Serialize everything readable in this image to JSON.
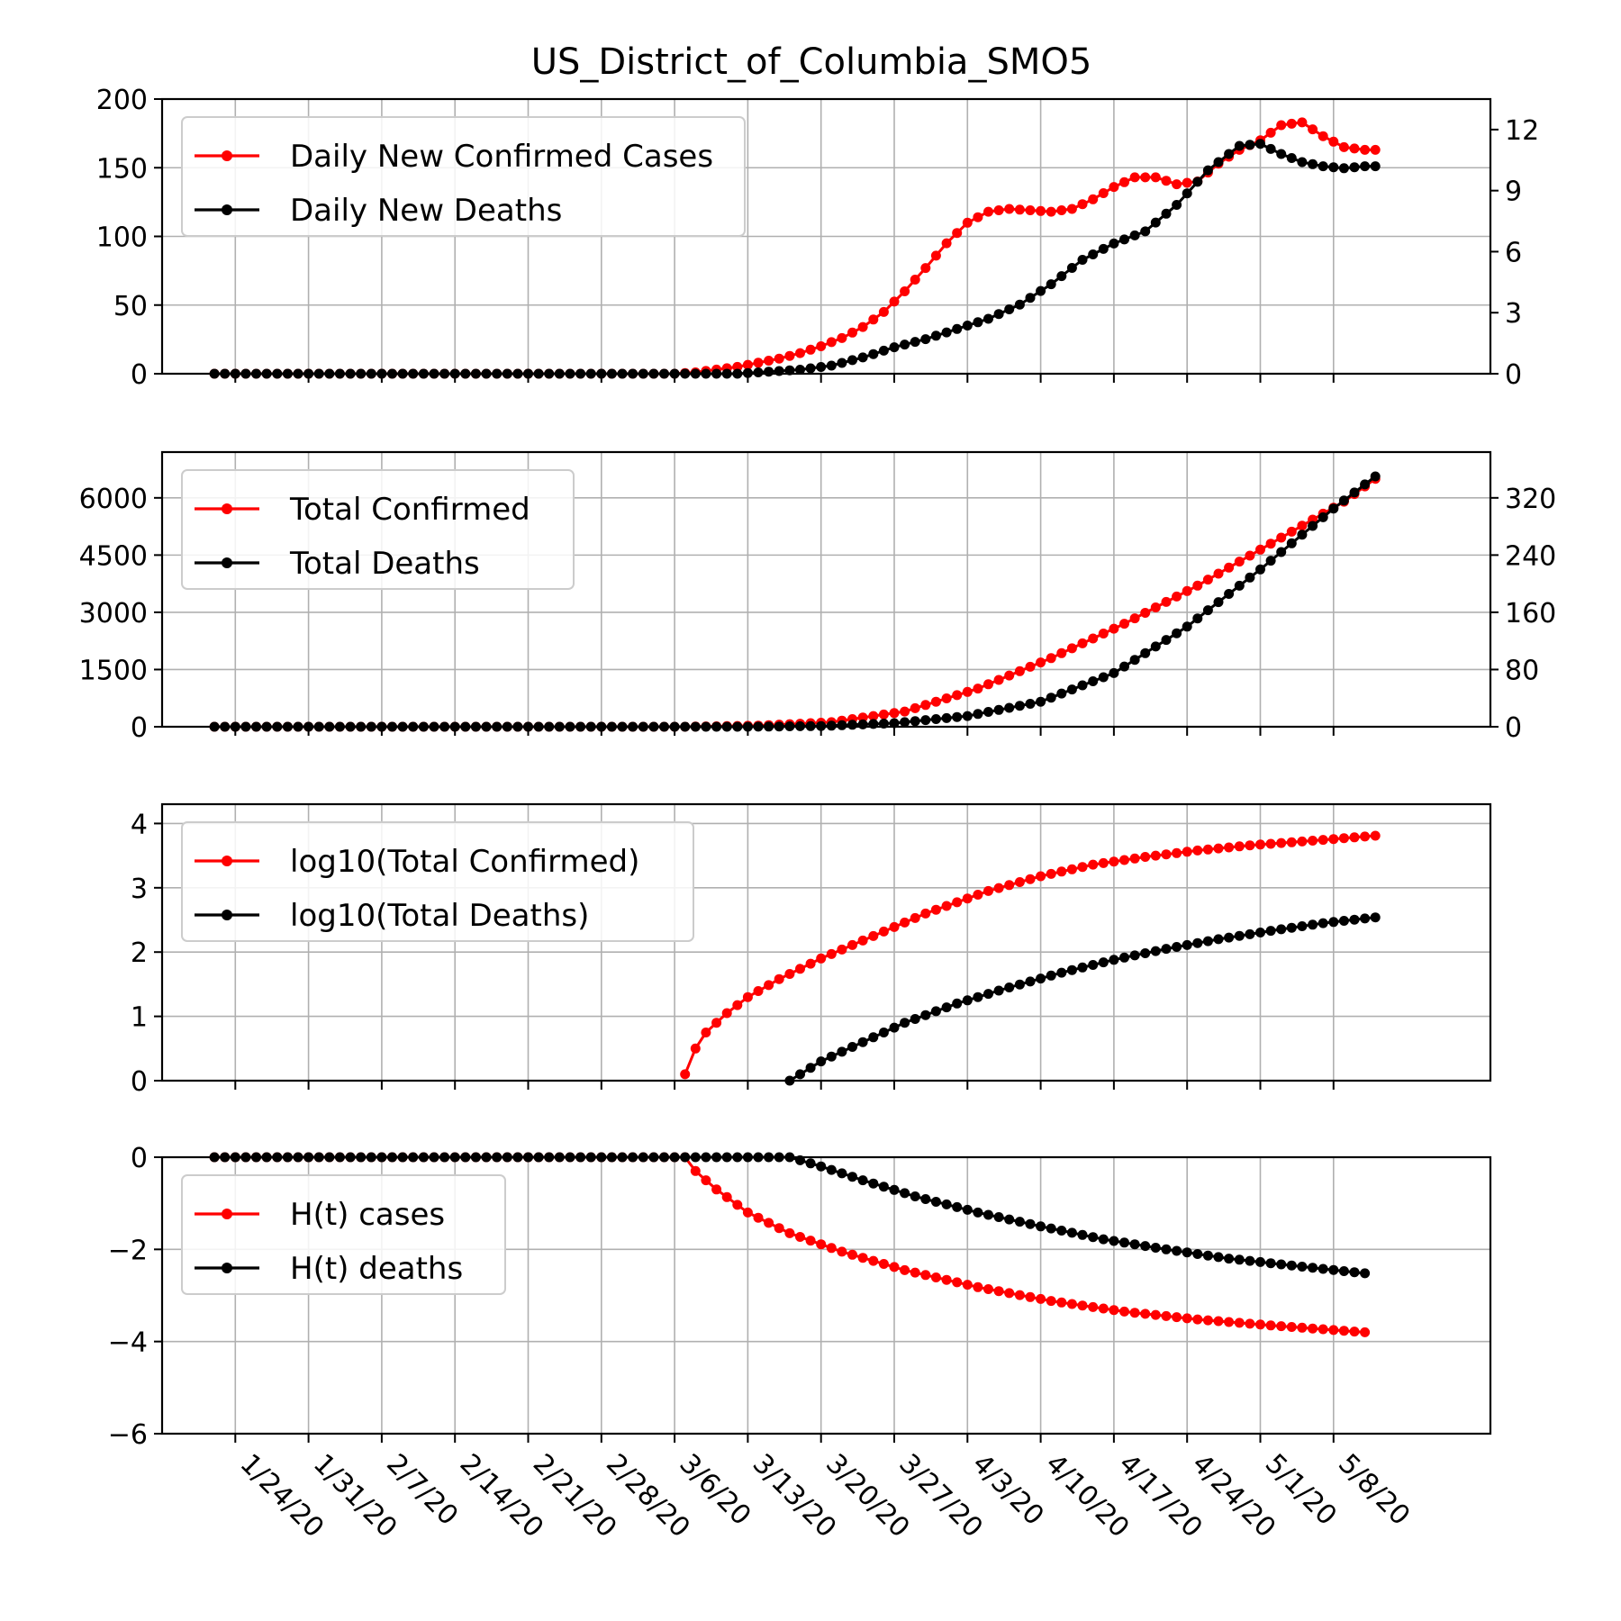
{
  "figure": {
    "title": "US_District_of_Columbia_SMO5",
    "x_tick_labels": [
      "1/24/20",
      "1/31/20",
      "2/7/20",
      "2/14/20",
      "2/21/20",
      "2/28/20",
      "3/6/20",
      "3/13/20",
      "3/20/20",
      "3/27/20",
      "4/3/20",
      "4/10/20",
      "4/17/20",
      "4/24/20",
      "5/1/20",
      "5/8/20"
    ]
  },
  "chart_data": [
    {
      "type": "line",
      "x_start": "2020-01-22",
      "x_end": "2020-05-12",
      "title": "US_District_of_Columbia_SMO5",
      "ylim_left": [
        0,
        200
      ],
      "ylim_right": [
        0,
        13.5
      ],
      "yticks_left": [
        0,
        50,
        100,
        150,
        200
      ],
      "yticks_right": [
        0,
        3,
        6,
        9,
        12
      ],
      "grid": true,
      "legend_position": "top-left",
      "series": [
        {
          "name": "Daily New Confirmed Cases",
          "color": "#ff0000",
          "axis": "left",
          "points": [
            [
              "2020-01-22",
              0
            ],
            [
              "2020-03-06",
              0
            ],
            [
              "2020-03-08",
              1
            ],
            [
              "2020-03-10",
              3
            ],
            [
              "2020-03-12",
              5
            ],
            [
              "2020-03-14",
              8
            ],
            [
              "2020-03-16",
              11
            ],
            [
              "2020-03-18",
              15
            ],
            [
              "2020-03-20",
              20
            ],
            [
              "2020-03-22",
              26
            ],
            [
              "2020-03-24",
              34
            ],
            [
              "2020-03-26",
              45
            ],
            [
              "2020-03-28",
              60
            ],
            [
              "2020-03-30",
              77
            ],
            [
              "2020-04-01",
              95
            ],
            [
              "2020-04-03",
              110
            ],
            [
              "2020-04-05",
              118
            ],
            [
              "2020-04-07",
              120
            ],
            [
              "2020-04-09",
              119
            ],
            [
              "2020-04-11",
              118
            ],
            [
              "2020-04-13",
              120
            ],
            [
              "2020-04-15",
              127
            ],
            [
              "2020-04-17",
              136
            ],
            [
              "2020-04-19",
              143
            ],
            [
              "2020-04-21",
              143
            ],
            [
              "2020-04-23",
              138
            ],
            [
              "2020-04-25",
              140
            ],
            [
              "2020-04-27",
              153
            ],
            [
              "2020-04-29",
              163
            ],
            [
              "2020-05-01",
              170
            ],
            [
              "2020-05-03",
              181
            ],
            [
              "2020-05-05",
              183
            ],
            [
              "2020-05-07",
              173
            ],
            [
              "2020-05-09",
              165
            ],
            [
              "2020-05-11",
              163
            ],
            [
              "2020-05-12",
              163
            ]
          ]
        },
        {
          "name": "Daily New Deaths",
          "color": "#000000",
          "axis": "right",
          "points": [
            [
              "2020-01-22",
              0
            ],
            [
              "2020-03-12",
              0
            ],
            [
              "2020-03-15",
              0.1
            ],
            [
              "2020-03-18",
              0.2
            ],
            [
              "2020-03-21",
              0.4
            ],
            [
              "2020-03-24",
              0.8
            ],
            [
              "2020-03-27",
              1.3
            ],
            [
              "2020-03-30",
              1.7
            ],
            [
              "2020-04-02",
              2.2
            ],
            [
              "2020-04-05",
              2.7
            ],
            [
              "2020-04-08",
              3.4
            ],
            [
              "2020-04-11",
              4.4
            ],
            [
              "2020-04-14",
              5.6
            ],
            [
              "2020-04-17",
              6.4
            ],
            [
              "2020-04-20",
              7.0
            ],
            [
              "2020-04-23",
              8.3
            ],
            [
              "2020-04-26",
              10.0
            ],
            [
              "2020-04-29",
              11.2
            ],
            [
              "2020-05-01",
              11.3
            ],
            [
              "2020-05-03",
              10.8
            ],
            [
              "2020-05-05",
              10.4
            ],
            [
              "2020-05-07",
              10.2
            ],
            [
              "2020-05-09",
              10.1
            ],
            [
              "2020-05-11",
              10.2
            ],
            [
              "2020-05-12",
              10.2
            ]
          ]
        }
      ]
    },
    {
      "type": "line",
      "x_start": "2020-01-22",
      "x_end": "2020-05-12",
      "ylim_left": [
        0,
        7200
      ],
      "ylim_right": [
        0,
        384
      ],
      "yticks_left": [
        0,
        1500,
        3000,
        4500,
        6000
      ],
      "yticks_right": [
        0,
        80,
        160,
        240,
        320
      ],
      "grid": true,
      "legend_position": "top-left",
      "series": [
        {
          "name": "Total Confirmed",
          "color": "#ff0000",
          "axis": "left",
          "points": [
            [
              "2020-01-22",
              0
            ],
            [
              "2020-03-07",
              0
            ],
            [
              "2020-03-14",
              30
            ],
            [
              "2020-03-21",
              120
            ],
            [
              "2020-03-28",
              400
            ],
            [
              "2020-04-04",
              1000
            ],
            [
              "2020-04-11",
              1800
            ],
            [
              "2020-04-18",
              2700
            ],
            [
              "2020-04-25",
              3700
            ],
            [
              "2020-05-02",
              4800
            ],
            [
              "2020-05-09",
              5900
            ],
            [
              "2020-05-12",
              6500
            ]
          ]
        },
        {
          "name": "Total Deaths",
          "color": "#000000",
          "axis": "right",
          "points": [
            [
              "2020-01-22",
              0
            ],
            [
              "2020-03-13",
              0
            ],
            [
              "2020-03-20",
              1
            ],
            [
              "2020-03-27",
              5
            ],
            [
              "2020-04-03",
              15
            ],
            [
              "2020-04-10",
              35
            ],
            [
              "2020-04-17",
              75
            ],
            [
              "2020-04-24",
              140
            ],
            [
              "2020-05-01",
              220
            ],
            [
              "2020-05-08",
              305
            ],
            [
              "2020-05-12",
              350
            ]
          ]
        }
      ]
    },
    {
      "type": "line",
      "x_start": "2020-01-22",
      "x_end": "2020-05-12",
      "ylim": [
        0,
        4.3
      ],
      "yticks": [
        0,
        1,
        2,
        3,
        4
      ],
      "grid": true,
      "legend_position": "top-left",
      "series": [
        {
          "name": "log10(Total Confirmed)",
          "color": "#ff0000",
          "points": [
            [
              "2020-03-07",
              0.1
            ],
            [
              "2020-03-08",
              0.5
            ],
            [
              "2020-03-09",
              0.75
            ],
            [
              "2020-03-11",
              1.05
            ],
            [
              "2020-03-13",
              1.3
            ],
            [
              "2020-03-16",
              1.58
            ],
            [
              "2020-03-20",
              1.9
            ],
            [
              "2020-03-25",
              2.25
            ],
            [
              "2020-03-30",
              2.6
            ],
            [
              "2020-04-05",
              2.95
            ],
            [
              "2020-04-10",
              3.18
            ],
            [
              "2020-04-15",
              3.36
            ],
            [
              "2020-04-20",
              3.48
            ],
            [
              "2020-04-25",
              3.58
            ],
            [
              "2020-04-30",
              3.66
            ],
            [
              "2020-05-05",
              3.72
            ],
            [
              "2020-05-12",
              3.81
            ]
          ]
        },
        {
          "name": "log10(Total Deaths)",
          "color": "#000000",
          "points": [
            [
              "2020-03-17",
              0
            ],
            [
              "2020-03-20",
              0.3
            ],
            [
              "2020-03-24",
              0.6
            ],
            [
              "2020-03-28",
              0.9
            ],
            [
              "2020-04-02",
              1.2
            ],
            [
              "2020-04-07",
              1.45
            ],
            [
              "2020-04-12",
              1.68
            ],
            [
              "2020-04-17",
              1.88
            ],
            [
              "2020-04-22",
              2.05
            ],
            [
              "2020-04-27",
              2.2
            ],
            [
              "2020-05-02",
              2.33
            ],
            [
              "2020-05-07",
              2.45
            ],
            [
              "2020-05-12",
              2.54
            ]
          ]
        }
      ]
    },
    {
      "type": "line",
      "x_start": "2020-01-22",
      "x_end": "2020-05-12",
      "ylim": [
        -6,
        0
      ],
      "yticks": [
        0,
        -2,
        -4,
        -6
      ],
      "grid": true,
      "legend_position": "top-left",
      "series": [
        {
          "name": "H(t) cases",
          "color": "#ff0000",
          "points": [
            [
              "2020-01-22",
              0
            ],
            [
              "2020-03-07",
              0
            ],
            [
              "2020-03-08",
              -0.3
            ],
            [
              "2020-03-10",
              -0.7
            ],
            [
              "2020-03-13",
              -1.2
            ],
            [
              "2020-03-17",
              -1.65
            ],
            [
              "2020-03-22",
              -2.05
            ],
            [
              "2020-03-28",
              -2.45
            ],
            [
              "2020-04-04",
              -2.82
            ],
            [
              "2020-04-11",
              -3.12
            ],
            [
              "2020-04-18",
              -3.35
            ],
            [
              "2020-04-25",
              -3.52
            ],
            [
              "2020-05-02",
              -3.65
            ],
            [
              "2020-05-11",
              -3.8
            ]
          ]
        },
        {
          "name": "H(t) deaths",
          "color": "#000000",
          "points": [
            [
              "2020-01-22",
              0
            ],
            [
              "2020-03-14",
              0
            ],
            [
              "2020-03-17",
              0
            ],
            [
              "2020-03-20",
              -0.2
            ],
            [
              "2020-03-24",
              -0.5
            ],
            [
              "2020-03-29",
              -0.85
            ],
            [
              "2020-04-04",
              -1.2
            ],
            [
              "2020-04-10",
              -1.5
            ],
            [
              "2020-04-16",
              -1.78
            ],
            [
              "2020-04-22",
              -2.0
            ],
            [
              "2020-04-28",
              -2.2
            ],
            [
              "2020-05-04",
              -2.35
            ],
            [
              "2020-05-11",
              -2.52
            ]
          ]
        }
      ]
    }
  ]
}
